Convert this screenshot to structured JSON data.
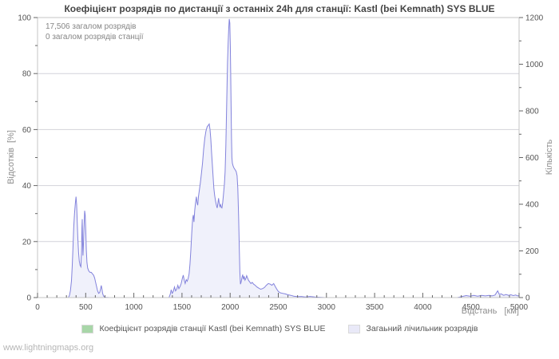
{
  "footer": {
    "link": "www.lightningmaps.org"
  },
  "chart_data": {
    "type": "area",
    "title": "Коефіцієнт розрядів по дистанції з останніх 24h для станції: Kastl (bei Kemnath) SYS BLUE",
    "annotations": [
      "17,506 загалом розрядів",
      "0 загалом розрядів станції"
    ],
    "x_axis": {
      "label": "Відстань   [км]",
      "range": [
        0,
        5000
      ],
      "major_step": 500,
      "minor_step": 100,
      "ticks": [
        0,
        500,
        1000,
        1500,
        2000,
        2500,
        3000,
        3500,
        4000,
        4500,
        5000
      ]
    },
    "y_left": {
      "label": "Відсотків  [%]",
      "range": [
        0,
        100
      ],
      "major_step": 20,
      "minor_step": 10,
      "ticks": [
        0,
        20,
        40,
        60,
        80,
        100
      ]
    },
    "y_right": {
      "label": "Кількість",
      "range": [
        0,
        1200
      ],
      "major_step": 200,
      "minor_step": 100,
      "ticks": [
        0,
        200,
        400,
        600,
        800,
        1000,
        1200
      ]
    },
    "grid": true,
    "legend_position": "bottom-center",
    "colors": {
      "line": "#8383dc",
      "fill": "#f0f1fb",
      "grid": "#d2d2da",
      "border": "#c4c4c4",
      "tick": "#666666"
    },
    "series": [
      {
        "label": "Коефіцієнт розрядів станції Kastl (bei Kemnath) SYS BLUE",
        "color": "#a8d6a8",
        "axis": "left",
        "points": []
      },
      {
        "label": "Загаьний лічильник розрядів",
        "color": "#e9e9f8",
        "axis": "right",
        "points": [
          [
            0,
            0
          ],
          [
            320,
            0
          ],
          [
            332,
            0.8
          ],
          [
            342,
            2.5
          ],
          [
            352,
            6
          ],
          [
            360,
            11
          ],
          [
            368,
            18
          ],
          [
            376,
            25
          ],
          [
            384,
            30
          ],
          [
            392,
            33.5
          ],
          [
            400,
            36
          ],
          [
            406,
            33
          ],
          [
            412,
            27
          ],
          [
            419,
            21
          ],
          [
            426,
            16
          ],
          [
            434,
            13
          ],
          [
            442,
            11.5
          ],
          [
            450,
            11
          ],
          [
            456,
            16
          ],
          [
            461,
            25
          ],
          [
            464,
            28
          ],
          [
            468,
            20
          ],
          [
            472,
            15
          ],
          [
            477,
            19
          ],
          [
            483,
            25
          ],
          [
            489,
            31
          ],
          [
            495,
            29.5
          ],
          [
            501,
            24
          ],
          [
            507,
            17
          ],
          [
            513,
            12.5
          ],
          [
            521,
            10.5
          ],
          [
            532,
            9.5
          ],
          [
            545,
            9
          ],
          [
            558,
            9
          ],
          [
            570,
            8.5
          ],
          [
            582,
            8
          ],
          [
            593,
            7
          ],
          [
            603,
            5.5
          ],
          [
            613,
            4
          ],
          [
            623,
            2.5
          ],
          [
            634,
            1.5
          ],
          [
            645,
            1.8
          ],
          [
            655,
            3.2
          ],
          [
            662,
            4.3
          ],
          [
            669,
            3
          ],
          [
            676,
            1.5
          ],
          [
            686,
            0.5
          ],
          [
            700,
            0.1
          ],
          [
            750,
            0
          ],
          [
            1000,
            0
          ],
          [
            1250,
            0
          ],
          [
            1365,
            0
          ],
          [
            1378,
            1.2
          ],
          [
            1388,
            2.8
          ],
          [
            1398,
            1.5
          ],
          [
            1410,
            2.2
          ],
          [
            1422,
            3.8
          ],
          [
            1433,
            2.4
          ],
          [
            1445,
            3
          ],
          [
            1457,
            4.4
          ],
          [
            1468,
            3.2
          ],
          [
            1480,
            4
          ],
          [
            1492,
            5
          ],
          [
            1503,
            6.8
          ],
          [
            1513,
            8
          ],
          [
            1523,
            6.2
          ],
          [
            1533,
            5
          ],
          [
            1544,
            6.4
          ],
          [
            1554,
            5.8
          ],
          [
            1564,
            6.8
          ],
          [
            1574,
            8.5
          ],
          [
            1583,
            12
          ],
          [
            1592,
            17
          ],
          [
            1601,
            23
          ],
          [
            1610,
            28
          ],
          [
            1618,
            29.5
          ],
          [
            1624,
            27
          ],
          [
            1632,
            31
          ],
          [
            1641,
            34
          ],
          [
            1649,
            36
          ],
          [
            1656,
            34
          ],
          [
            1663,
            33
          ],
          [
            1671,
            36
          ],
          [
            1681,
            38.5
          ],
          [
            1691,
            41
          ],
          [
            1701,
            44
          ],
          [
            1713,
            48
          ],
          [
            1725,
            53
          ],
          [
            1737,
            57
          ],
          [
            1749,
            59.5
          ],
          [
            1761,
            61
          ],
          [
            1773,
            61.5
          ],
          [
            1783,
            62
          ],
          [
            1791,
            60
          ],
          [
            1799,
            56.5
          ],
          [
            1807,
            52
          ],
          [
            1815,
            47.5
          ],
          [
            1823,
            43
          ],
          [
            1831,
            39
          ],
          [
            1839,
            36.5
          ],
          [
            1848,
            34.5
          ],
          [
            1857,
            33
          ],
          [
            1866,
            32
          ],
          [
            1874,
            34
          ],
          [
            1880,
            35.5
          ],
          [
            1887,
            33.5
          ],
          [
            1894,
            32.5
          ],
          [
            1901,
            33.2
          ],
          [
            1908,
            32.2
          ],
          [
            1915,
            32
          ],
          [
            1923,
            34
          ],
          [
            1931,
            37
          ],
          [
            1940,
            40.5
          ],
          [
            1948,
            45
          ],
          [
            1955,
            54
          ],
          [
            1961,
            64
          ],
          [
            1967,
            74
          ],
          [
            1973,
            84
          ],
          [
            1979,
            91
          ],
          [
            1985,
            96
          ],
          [
            1991,
            99.5
          ],
          [
            1997,
            98
          ],
          [
            2002,
            90
          ],
          [
            2006,
            80
          ],
          [
            2010,
            68
          ],
          [
            2014,
            57
          ],
          [
            2018,
            50
          ],
          [
            2023,
            48
          ],
          [
            2031,
            47
          ],
          [
            2041,
            46.2
          ],
          [
            2052,
            45.6
          ],
          [
            2063,
            45
          ],
          [
            2072,
            43.5
          ],
          [
            2080,
            39
          ],
          [
            2088,
            29
          ],
          [
            2095,
            17
          ],
          [
            2101,
            9
          ],
          [
            2107,
            4.8
          ],
          [
            2114,
            5.5
          ],
          [
            2122,
            7
          ],
          [
            2130,
            8.2
          ],
          [
            2138,
            6.5
          ],
          [
            2146,
            7.6
          ],
          [
            2154,
            6.2
          ],
          [
            2163,
            6.8
          ],
          [
            2172,
            7.8
          ],
          [
            2181,
            7
          ],
          [
            2190,
            6.2
          ],
          [
            2202,
            5.6
          ],
          [
            2216,
            5
          ],
          [
            2230,
            5.4
          ],
          [
            2244,
            4.8
          ],
          [
            2260,
            4.4
          ],
          [
            2278,
            3.8
          ],
          [
            2296,
            3.4
          ],
          [
            2316,
            3
          ],
          [
            2336,
            3.2
          ],
          [
            2356,
            3.6
          ],
          [
            2376,
            4.4
          ],
          [
            2396,
            5
          ],
          [
            2416,
            4.8
          ],
          [
            2434,
            4.4
          ],
          [
            2452,
            5
          ],
          [
            2468,
            4
          ],
          [
            2484,
            3
          ],
          [
            2500,
            2.2
          ],
          [
            2520,
            1.7
          ],
          [
            2545,
            1.5
          ],
          [
            2572,
            1.3
          ],
          [
            2600,
            1
          ],
          [
            2630,
            0.8
          ],
          [
            2660,
            0.5
          ],
          [
            2700,
            0.3
          ],
          [
            2740,
            0.4
          ],
          [
            2780,
            0.2
          ],
          [
            2830,
            0.4
          ],
          [
            2880,
            0.2
          ],
          [
            2930,
            0.1
          ],
          [
            2990,
            0
          ],
          [
            3200,
            0
          ],
          [
            3400,
            0
          ],
          [
            3600,
            0
          ],
          [
            3800,
            0
          ],
          [
            4000,
            0
          ],
          [
            4200,
            0
          ],
          [
            4360,
            0
          ],
          [
            4410,
            0.4
          ],
          [
            4450,
            0.7
          ],
          [
            4490,
            0.5
          ],
          [
            4530,
            0.8
          ],
          [
            4570,
            0.5
          ],
          [
            4610,
            0.8
          ],
          [
            4650,
            0.6
          ],
          [
            4690,
            0.8
          ],
          [
            4720,
            0.6
          ],
          [
            4750,
            0.9
          ],
          [
            4778,
            2.4
          ],
          [
            4795,
            1.1
          ],
          [
            4815,
            1.3
          ],
          [
            4840,
            0.8
          ],
          [
            4865,
            1.1
          ],
          [
            4890,
            0.8
          ],
          [
            4915,
            1
          ],
          [
            4940,
            0.7
          ],
          [
            4965,
            0.9
          ],
          [
            4985,
            0.6
          ],
          [
            5000,
            0.7
          ]
        ]
      }
    ]
  }
}
